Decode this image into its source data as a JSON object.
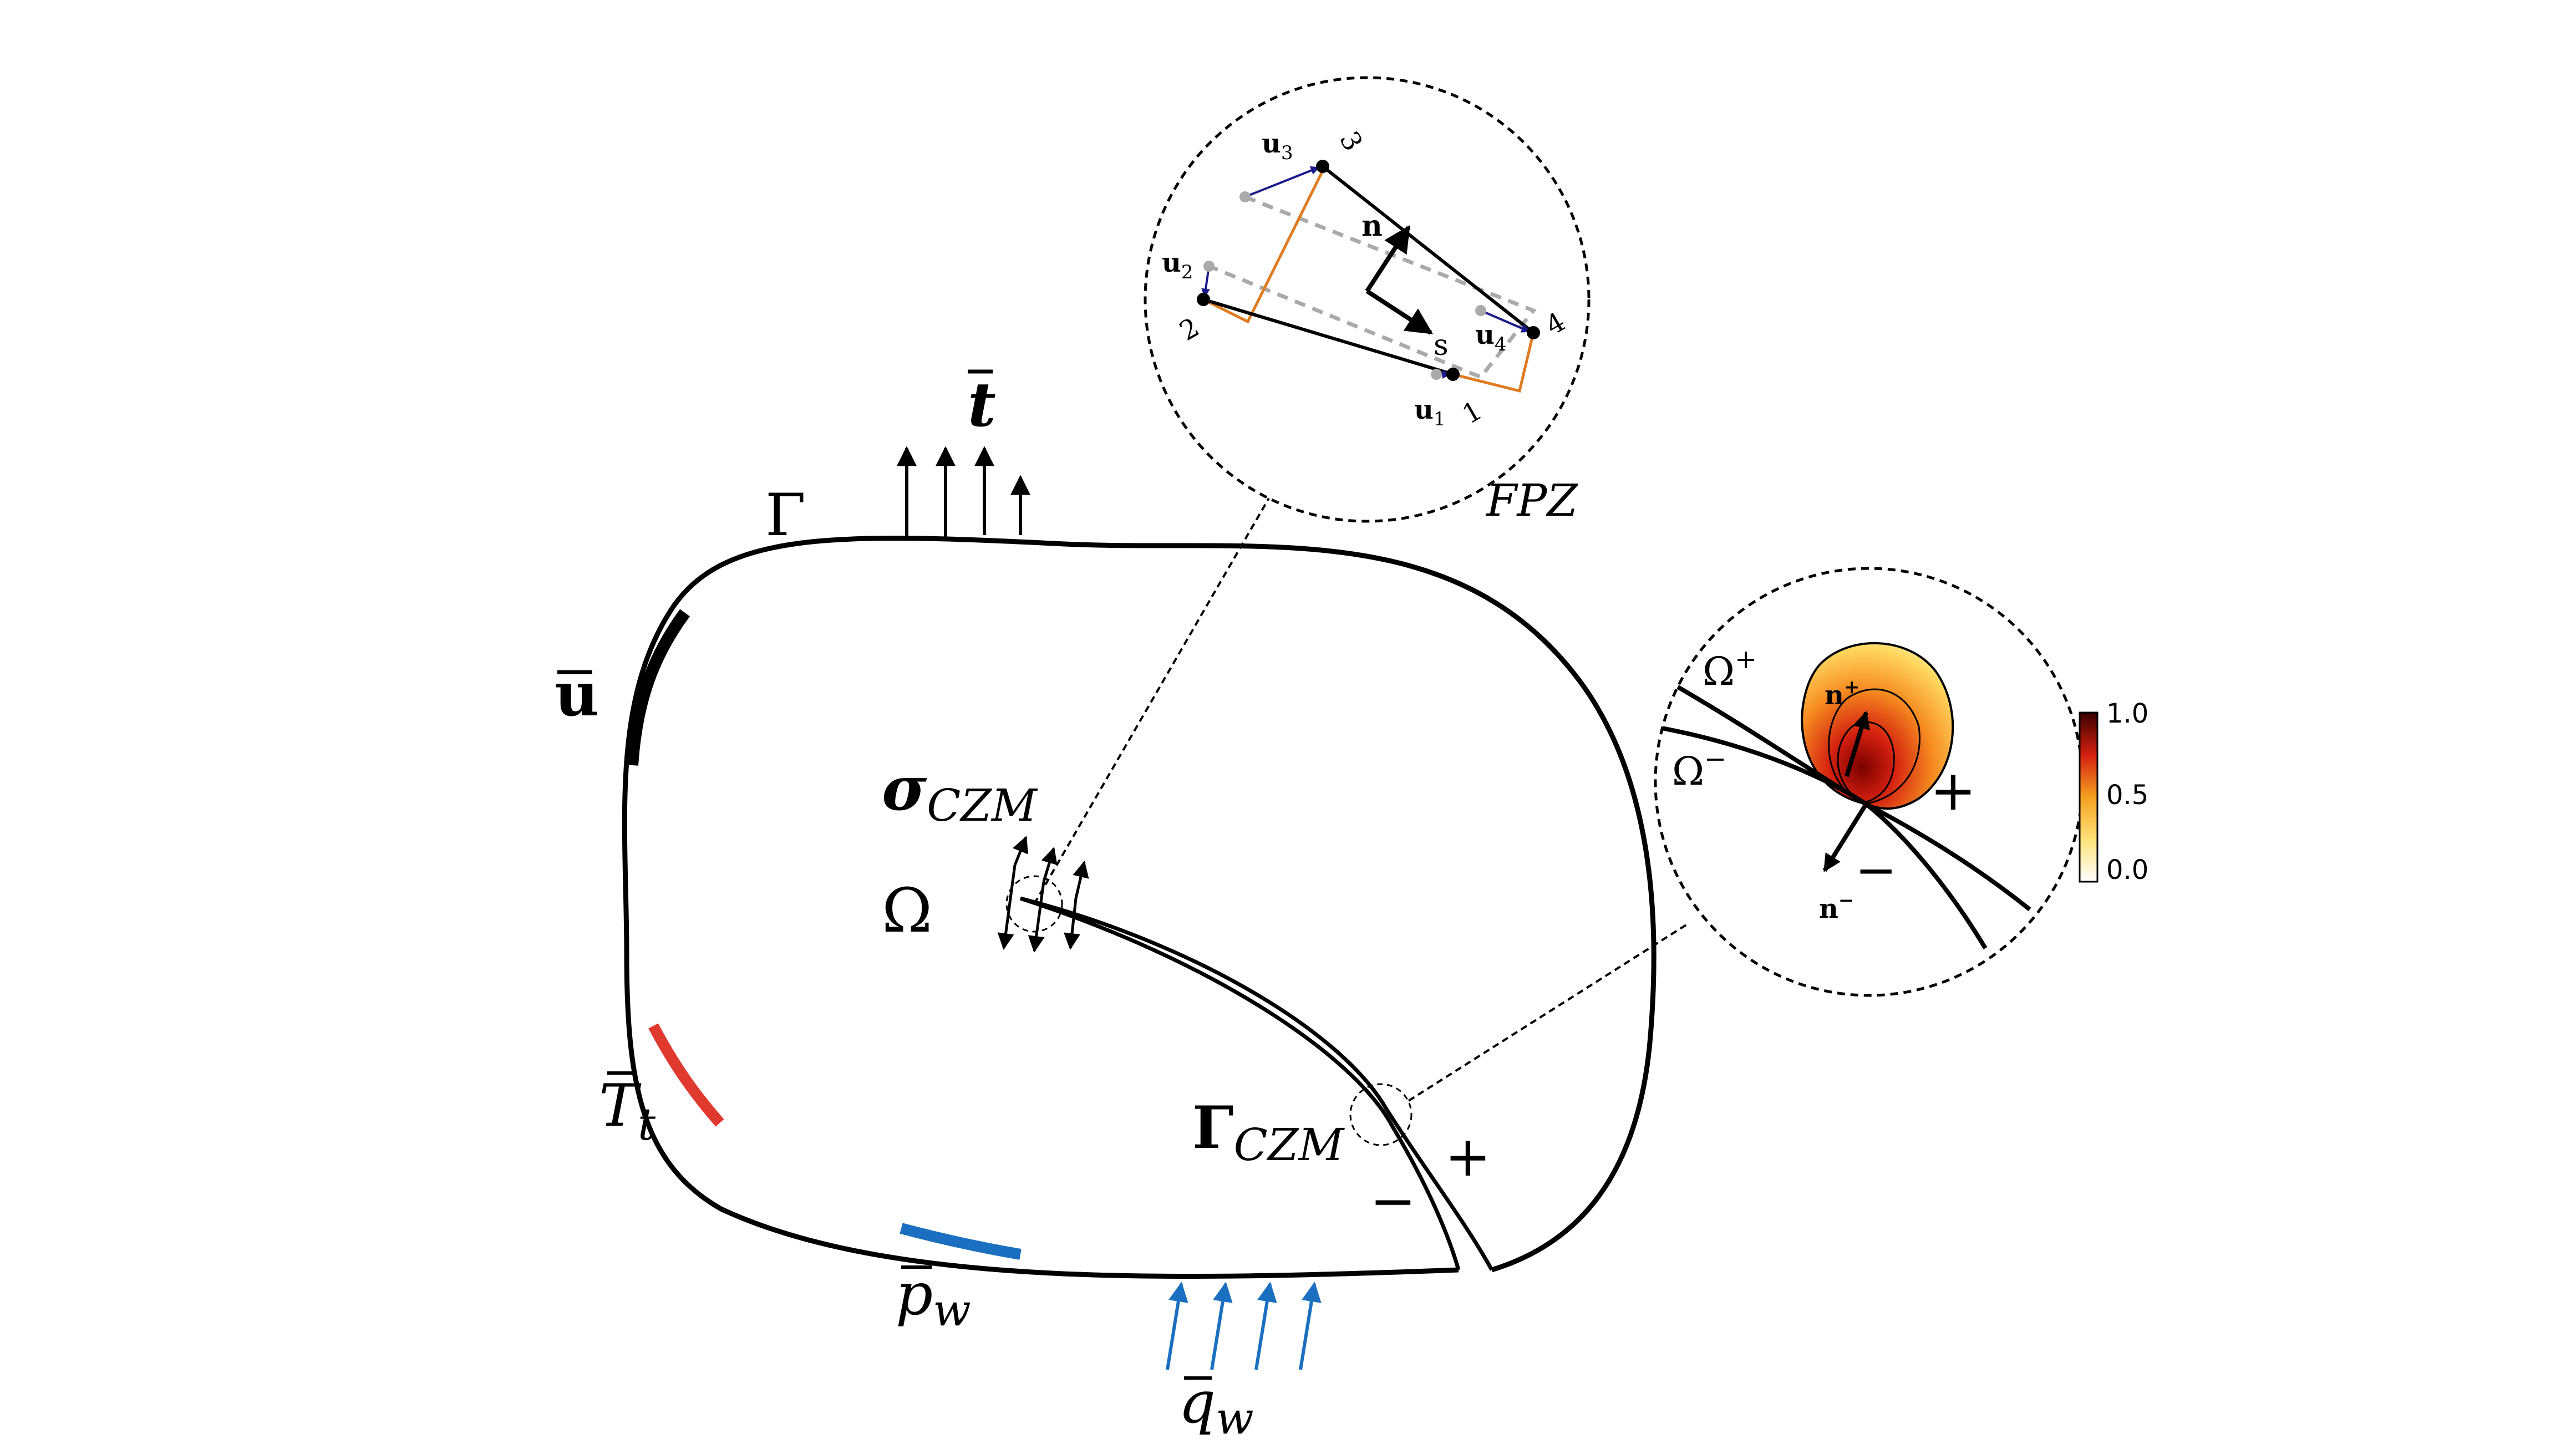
{
  "labels": {
    "Gamma": "Γ",
    "t_bar": "t",
    "u_bar": "u",
    "sigma": "σ",
    "sigma_sub": "CZM",
    "Omega": "Ω",
    "T": "T",
    "T_sub": "t",
    "p": "p",
    "p_sub": "w",
    "q": "q",
    "q_sub": "w",
    "Gamma_czm": "Γ",
    "Gamma_czm_sub": "CZM",
    "plus": "+",
    "minus": "−",
    "FPZ": "FPZ"
  },
  "fpz_inset": {
    "u1": "u",
    "u1_sub": "1",
    "u2": "u",
    "u2_sub": "2",
    "u3": "u",
    "u3_sub": "3",
    "u4": "u",
    "u4_sub": "4",
    "node1": "1",
    "node2": "2",
    "node3": "3",
    "node4": "4",
    "n": "n",
    "s": "s"
  },
  "contact_inset": {
    "omega_plus": "Ω",
    "omega_plus_sup": "+",
    "omega_minus": "Ω",
    "omega_minus_sup": "−",
    "n_plus": "n",
    "n_plus_sup": "+",
    "n_minus": "n",
    "n_minus_sup": "−",
    "plus": "+",
    "minus": "−"
  },
  "colorbar": {
    "ticks": [
      "1.0",
      "0.5",
      "0.0"
    ],
    "range": [
      0.0,
      1.0
    ]
  },
  "colors": {
    "boundary": "#000000",
    "traction": "#e03a2f",
    "pressure": "#1a6fc0",
    "flux_arrow": "#1a6fc0",
    "element_edge": "#e07a20",
    "displacement": "#1a1a8c",
    "undeformed": "#aaaaaa"
  }
}
